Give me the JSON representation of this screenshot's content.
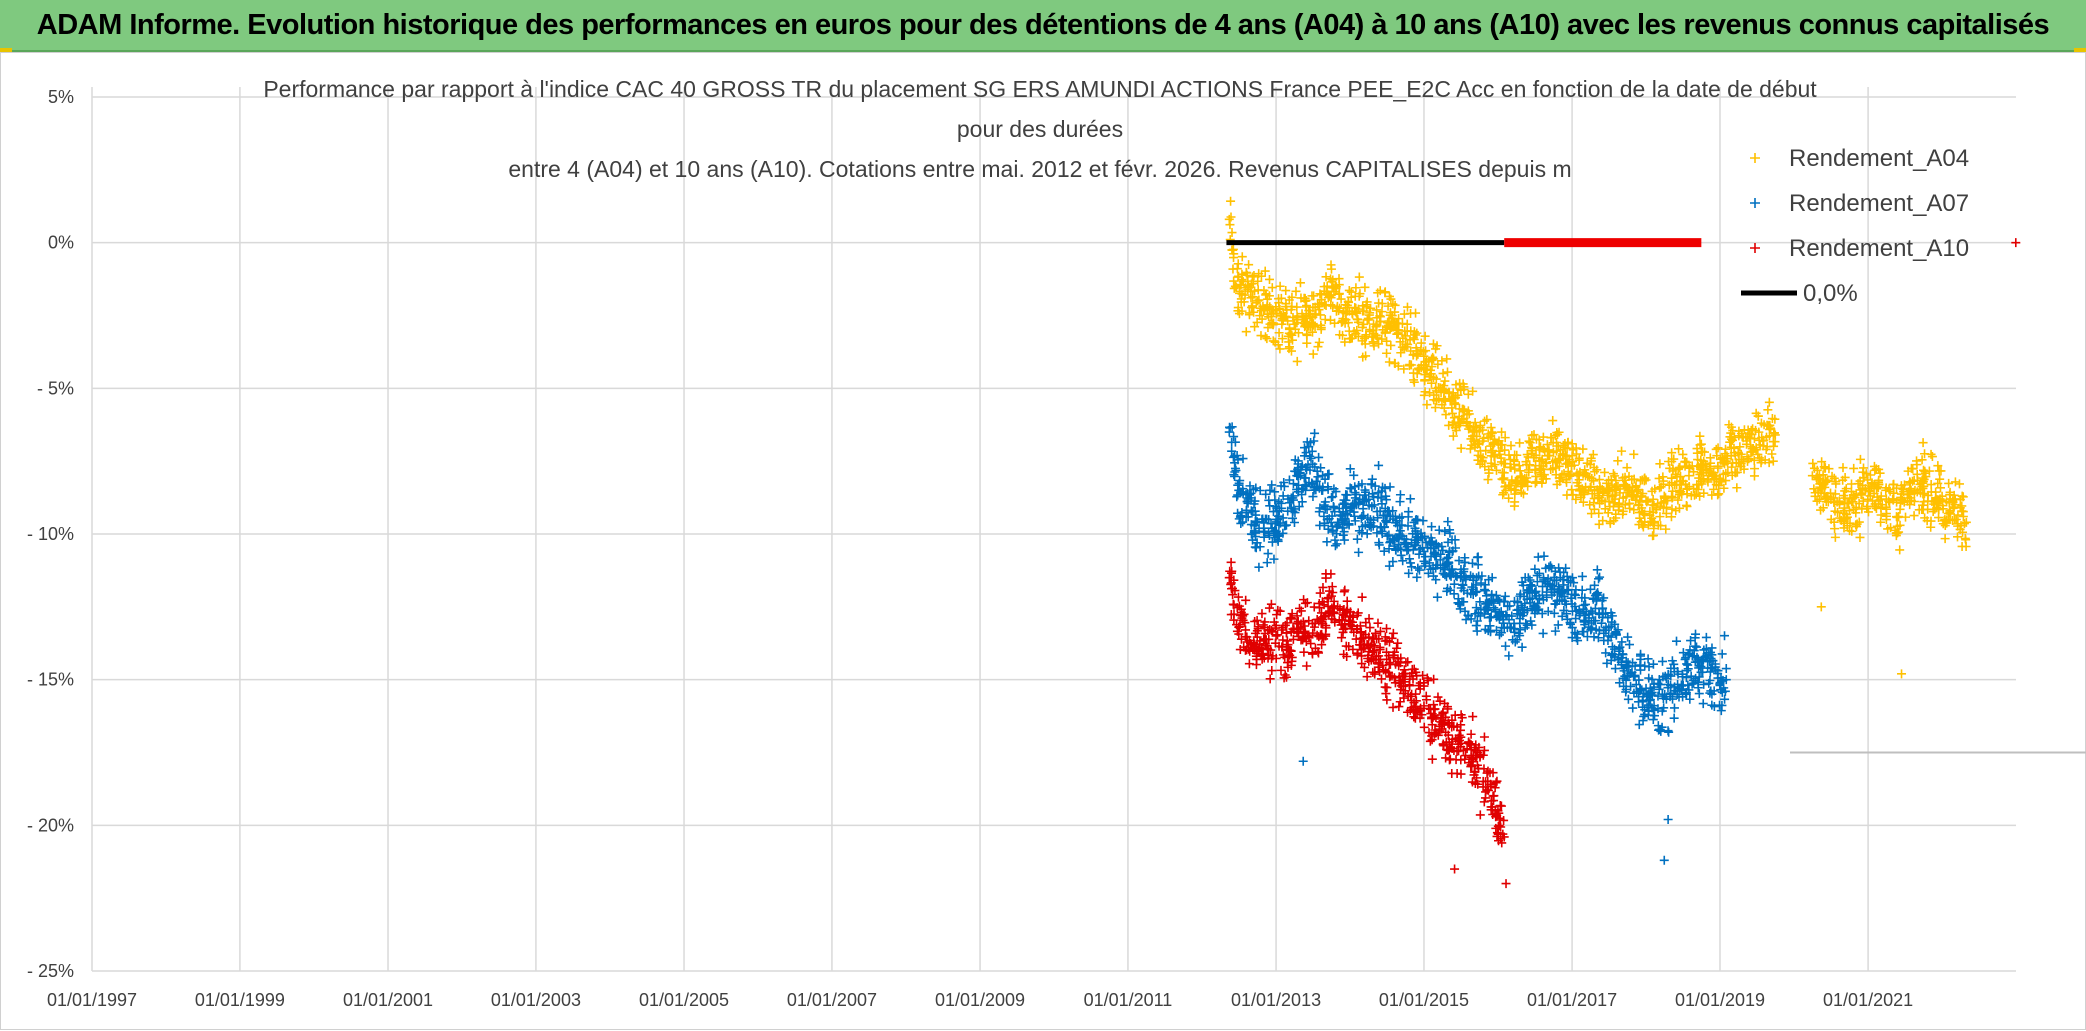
{
  "banner": {
    "title": "ADAM Informe. Evolution historique des performances en euros pour des détentions de 4 ans (A04) à 10 ans (A10) avec les revenus connus capitalisés"
  },
  "colors": {
    "banner_bg": "#7fc97f",
    "series_A04": "#ffc000",
    "series_A07": "#0070c0",
    "series_A10": "#e00000",
    "zero_line": "#000000",
    "zero_line_red": "#ee0000",
    "grid": "#d9d9d9"
  },
  "chart_data": {
    "type": "scatter",
    "title_lines": [
      "Performance par rapport à l'indice CAC 40 GROSS TR  du placement SG ERS AMUNDI ACTIONS France PEE_E2C Acc en fonction de la date de début",
      "pour des durées",
      "entre 4 (A04) et 10 ans (A10). Cotations entre mai. 2012 et févr. 2026. Revenus CAPITALISES depuis m"
    ],
    "xlabel": "",
    "ylabel": "",
    "xlim": [
      "1997-01-01",
      "2023-01-01"
    ],
    "ylim": [
      -25,
      5
    ],
    "x_ticks": [
      "01/01/1997",
      "01/01/1999",
      "01/01/2001",
      "01/01/2003",
      "01/01/2005",
      "01/01/2007",
      "01/01/2009",
      "01/01/2011",
      "01/01/2013",
      "01/01/2015",
      "01/01/2017",
      "01/01/2019",
      "01/01/2021"
    ],
    "y_ticks": [
      {
        "value": 5,
        "label": "5%"
      },
      {
        "value": 0,
        "label": "0%"
      },
      {
        "value": -5,
        "label": "- 5%"
      },
      {
        "value": -10,
        "label": "- 10%"
      },
      {
        "value": -15,
        "label": "- 15%"
      },
      {
        "value": -20,
        "label": "- 20%"
      },
      {
        "value": -25,
        "label": "- 25%"
      }
    ],
    "grid": true,
    "legend_position": "top-right",
    "legend": [
      "Rendement_A04",
      "Rendement_A07",
      "Rendement_A10",
      "0,0%"
    ],
    "series": [
      {
        "name": "Rendement_A04",
        "marker": "+",
        "points": [
          [
            "2012-05-15",
            0.8
          ],
          [
            "2012-06-15",
            -1.5
          ],
          [
            "2012-08-01",
            -1.8
          ],
          [
            "2012-10-01",
            -2.0
          ],
          [
            "2012-12-01",
            -2.2
          ],
          [
            "2013-02-01",
            -2.6
          ],
          [
            "2013-04-01",
            -2.8
          ],
          [
            "2013-06-01",
            -2.6
          ],
          [
            "2013-08-01",
            -2.3
          ],
          [
            "2013-10-01",
            -1.8
          ],
          [
            "2013-12-01",
            -2.4
          ],
          [
            "2014-02-01",
            -2.4
          ],
          [
            "2014-04-01",
            -2.6
          ],
          [
            "2014-06-01",
            -2.7
          ],
          [
            "2014-08-01",
            -2.9
          ],
          [
            "2014-10-01",
            -3.2
          ],
          [
            "2014-12-01",
            -3.8
          ],
          [
            "2015-02-01",
            -4.6
          ],
          [
            "2015-04-01",
            -5.0
          ],
          [
            "2015-06-01",
            -5.5
          ],
          [
            "2015-08-01",
            -6.2
          ],
          [
            "2015-10-01",
            -6.9
          ],
          [
            "2015-12-01",
            -7.2
          ],
          [
            "2016-02-01",
            -7.9
          ],
          [
            "2016-04-01",
            -8.2
          ],
          [
            "2016-06-01",
            -7.8
          ],
          [
            "2016-08-01",
            -7.5
          ],
          [
            "2016-10-01",
            -7.2
          ],
          [
            "2016-12-01",
            -7.6
          ],
          [
            "2017-02-01",
            -8.0
          ],
          [
            "2017-04-01",
            -8.4
          ],
          [
            "2017-06-01",
            -8.6
          ],
          [
            "2017-08-01",
            -8.8
          ],
          [
            "2017-10-01",
            -8.4
          ],
          [
            "2017-12-01",
            -8.9
          ],
          [
            "2018-02-01",
            -9.0
          ],
          [
            "2018-04-01",
            -8.7
          ],
          [
            "2018-06-01",
            -8.3
          ],
          [
            "2018-08-01",
            -8.0
          ],
          [
            "2018-10-01",
            -7.6
          ],
          [
            "2018-12-01",
            -7.9
          ],
          [
            "2019-02-01",
            -7.5
          ],
          [
            "2019-04-01",
            -7.2
          ],
          [
            "2019-06-01",
            -7.0
          ],
          [
            "2019-08-01",
            -6.8
          ],
          [
            "2019-10-01",
            -6.6
          ],
          [
            "2020-04-01",
            -8.0
          ],
          [
            "2020-06-01",
            -8.4
          ],
          [
            "2020-08-01",
            -8.9
          ],
          [
            "2020-10-01",
            -9.2
          ],
          [
            "2020-12-01",
            -8.6
          ],
          [
            "2021-02-01",
            -8.3
          ],
          [
            "2021-04-01",
            -8.8
          ],
          [
            "2021-06-01",
            -9.4
          ],
          [
            "2021-08-01",
            -8.5
          ],
          [
            "2021-10-01",
            -8.2
          ],
          [
            "2021-12-01",
            -8.8
          ],
          [
            "2022-02-01",
            -9.3
          ],
          [
            "2022-04-01",
            -9.1
          ],
          [
            "2022-05-01",
            -9.6
          ]
        ]
      },
      {
        "name": "Rendement_A07",
        "marker": "+",
        "points": [
          [
            "2012-05-15",
            -6.5
          ],
          [
            "2012-07-01",
            -8.5
          ],
          [
            "2012-09-01",
            -9.2
          ],
          [
            "2012-11-01",
            -9.8
          ],
          [
            "2013-01-01",
            -9.5
          ],
          [
            "2013-03-01",
            -8.8
          ],
          [
            "2013-05-01",
            -8.0
          ],
          [
            "2013-07-01",
            -7.6
          ],
          [
            "2013-09-01",
            -8.9
          ],
          [
            "2013-11-01",
            -9.6
          ],
          [
            "2014-01-01",
            -9.2
          ],
          [
            "2014-03-01",
            -9.4
          ],
          [
            "2014-05-01",
            -9.0
          ],
          [
            "2014-07-01",
            -9.6
          ],
          [
            "2014-09-01",
            -10.0
          ],
          [
            "2014-11-01",
            -10.3
          ],
          [
            "2015-01-01",
            -10.6
          ],
          [
            "2015-03-01",
            -10.7
          ],
          [
            "2015-05-01",
            -11.0
          ],
          [
            "2015-07-01",
            -11.5
          ],
          [
            "2015-09-01",
            -11.9
          ],
          [
            "2015-11-01",
            -12.4
          ],
          [
            "2016-01-01",
            -12.8
          ],
          [
            "2016-03-01",
            -13.2
          ],
          [
            "2016-05-01",
            -12.6
          ],
          [
            "2016-07-01",
            -12.0
          ],
          [
            "2016-09-01",
            -11.8
          ],
          [
            "2016-11-01",
            -12.0
          ],
          [
            "2017-01-01",
            -12.4
          ],
          [
            "2017-03-01",
            -13.0
          ],
          [
            "2017-05-01",
            -12.3
          ],
          [
            "2017-07-01",
            -13.5
          ],
          [
            "2017-09-01",
            -14.4
          ],
          [
            "2017-11-01",
            -14.9
          ],
          [
            "2018-01-01",
            -15.3
          ],
          [
            "2018-03-01",
            -16.0
          ],
          [
            "2018-05-01",
            -15.5
          ],
          [
            "2018-07-01",
            -14.9
          ],
          [
            "2018-09-01",
            -14.4
          ],
          [
            "2018-11-01",
            -14.6
          ],
          [
            "2019-01-01",
            -15.2
          ],
          [
            "2019-02-01",
            -15.0
          ]
        ]
      },
      {
        "name": "Rendement_A10",
        "marker": "+",
        "points": [
          [
            "2012-05-15",
            -11.5
          ],
          [
            "2012-07-01",
            -13.2
          ],
          [
            "2012-09-01",
            -13.8
          ],
          [
            "2012-11-01",
            -13.6
          ],
          [
            "2013-01-01",
            -13.5
          ],
          [
            "2013-03-01",
            -13.8
          ],
          [
            "2013-05-01",
            -13.2
          ],
          [
            "2013-07-01",
            -13.4
          ],
          [
            "2013-09-01",
            -12.8
          ],
          [
            "2013-11-01",
            -12.5
          ],
          [
            "2014-01-01",
            -13.1
          ],
          [
            "2014-03-01",
            -13.6
          ],
          [
            "2014-05-01",
            -14.0
          ],
          [
            "2014-07-01",
            -14.3
          ],
          [
            "2014-09-01",
            -14.9
          ],
          [
            "2014-11-01",
            -15.5
          ],
          [
            "2015-01-01",
            -15.9
          ],
          [
            "2015-03-01",
            -16.3
          ],
          [
            "2015-05-01",
            -16.9
          ],
          [
            "2015-07-01",
            -17.3
          ],
          [
            "2015-09-01",
            -17.6
          ],
          [
            "2015-11-01",
            -18.5
          ],
          [
            "2016-01-01",
            -19.5
          ],
          [
            "2016-02-01",
            -20.4
          ]
        ]
      },
      {
        "name": "0,0%",
        "type": "line",
        "segments": [
          {
            "from": "2012-05-01",
            "to": "2016-02-01",
            "value": 0,
            "color": "#000000"
          },
          {
            "from": "2016-02-01",
            "to": "2018-10-01",
            "value": 0,
            "color": "#ee0000"
          }
        ]
      }
    ]
  }
}
